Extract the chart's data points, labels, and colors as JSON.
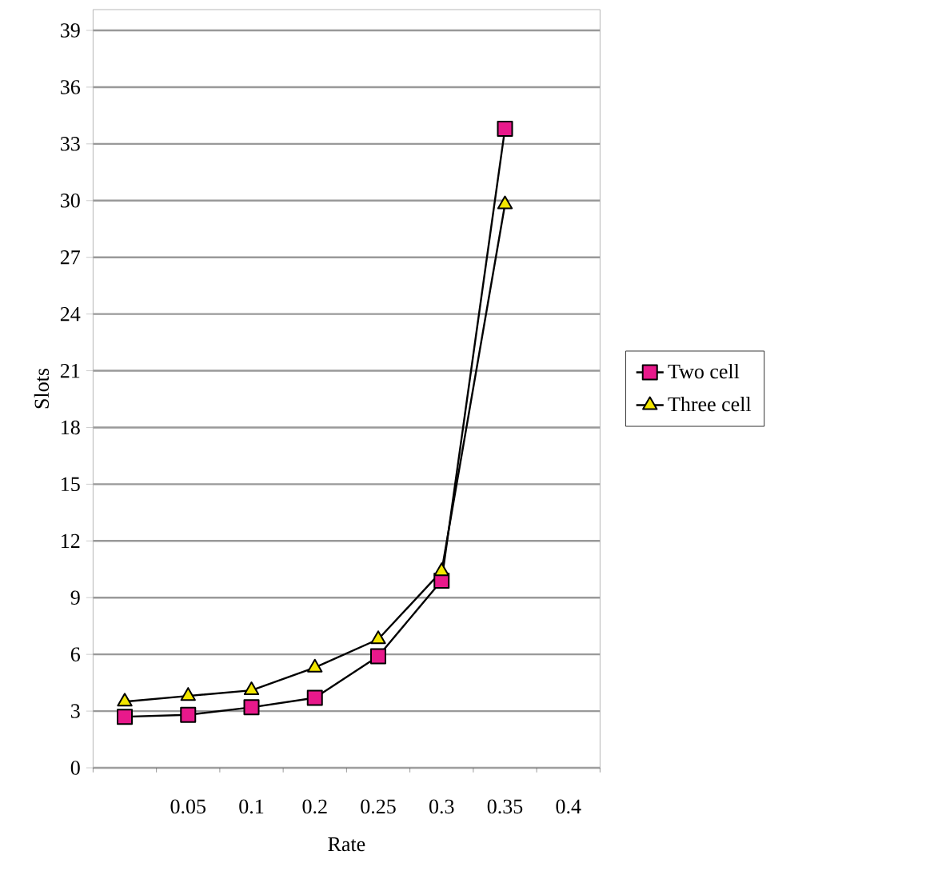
{
  "chart_data": {
    "type": "line",
    "xlabel": "Rate",
    "ylabel": "Slots",
    "categories": [
      null,
      "0.05",
      "0.1",
      "0.2",
      "0.25",
      "0.3",
      "0.35",
      "0.4"
    ],
    "series": [
      {
        "name": "Two cell",
        "color": "#e8198b",
        "marker": "square",
        "values": [
          2.7,
          2.8,
          3.2,
          3.7,
          5.9,
          9.9,
          33.8,
          null
        ]
      },
      {
        "name": "Three cell",
        "color": "#f2e600",
        "marker": "triangle",
        "values": [
          3.5,
          3.8,
          4.1,
          5.3,
          6.8,
          10.4,
          29.8,
          null
        ]
      }
    ],
    "ylim": [
      0,
      40.1
    ],
    "yticks": [
      0,
      3,
      6,
      9,
      12,
      15,
      18,
      21,
      24,
      27,
      30,
      33,
      36,
      39
    ],
    "grid": "y",
    "legend": "right"
  }
}
